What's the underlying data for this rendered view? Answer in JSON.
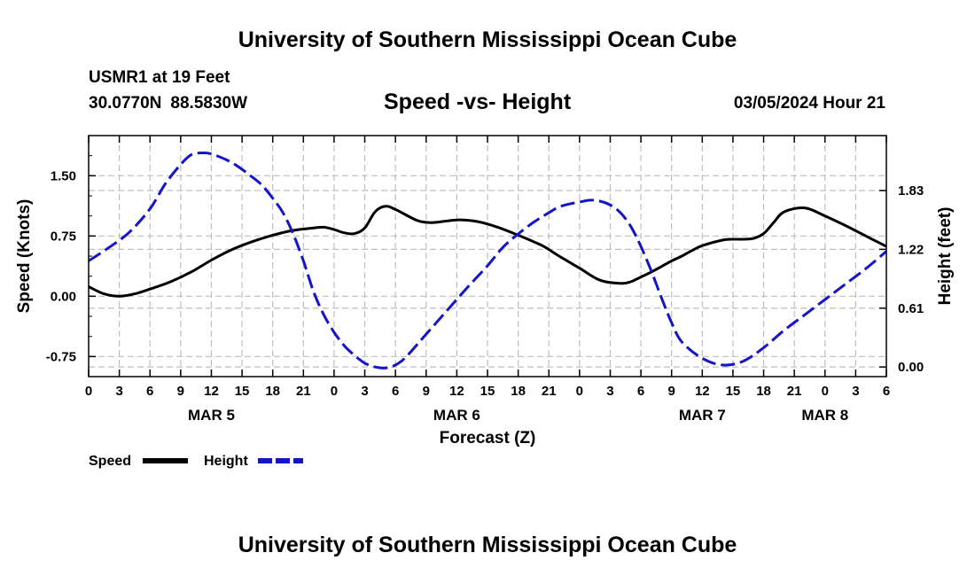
{
  "header": {
    "title_top": "University of Southern Mississippi Ocean Cube",
    "title_bottom": "University of Southern Mississippi Ocean Cube",
    "station": "USMR1 at 19 Feet",
    "latitude": "30.0770N",
    "longitude": "88.5830W",
    "subtitle": "Speed -vs- Height",
    "datetime": "03/05/2024 Hour 21"
  },
  "colors": {
    "speed": "#000000",
    "height": "#1414c8",
    "grid": "#bfbfbf"
  },
  "chart_data": {
    "type": "line",
    "xlabel": "Forecast (Z)",
    "ylabel": "Speed (Knots)",
    "ylabel_right": "Height (feet)",
    "x_unit": "hours from 00Z MAR 4",
    "xlim": [
      24,
      102
    ],
    "ylim": [
      -1.0,
      2.0
    ],
    "ylim_right": [
      -0.1,
      2.4
    ],
    "x_ticks": [
      24,
      27,
      30,
      33,
      36,
      39,
      42,
      45,
      48,
      51,
      54,
      57,
      60,
      63,
      66,
      69,
      72,
      75,
      78,
      81,
      84,
      87,
      90,
      93,
      96,
      99,
      102
    ],
    "x_tick_labels": [
      "0",
      "3",
      "6",
      "9",
      "12",
      "15",
      "18",
      "21",
      "0",
      "3",
      "6",
      "9",
      "12",
      "15",
      "18",
      "21",
      "0",
      "3",
      "6",
      "9",
      "12",
      "15",
      "18",
      "21",
      "0",
      "3",
      "6"
    ],
    "day_labels": [
      {
        "x": 36,
        "label": "MAR 5"
      },
      {
        "x": 60,
        "label": "MAR 6"
      },
      {
        "x": 84,
        "label": "MAR 7"
      },
      {
        "x": 96,
        "label": "MAR 8"
      }
    ],
    "y_ticks": [
      -0.75,
      0.0,
      0.75,
      1.5
    ],
    "y_tick_labels": [
      "-0.75",
      "0.00",
      "0.75",
      "1.50"
    ],
    "y_ticks_right": [
      0.0,
      0.61,
      1.22,
      1.83
    ],
    "y_tick_labels_right": [
      "0.00",
      "0.61",
      "1.22",
      "1.83"
    ],
    "series": [
      {
        "name": "Speed",
        "axis": "left",
        "style": "solid",
        "x": [
          24,
          25.5,
          27,
          28.5,
          30,
          32,
          34,
          36,
          38,
          40,
          42,
          44,
          46,
          47,
          48,
          49,
          50,
          51,
          52,
          53,
          54,
          56,
          57,
          58,
          60,
          62,
          64,
          66,
          67.5,
          68.5,
          70,
          72,
          74,
          76,
          77,
          78,
          79,
          80,
          81,
          82,
          83,
          84,
          86,
          87,
          88,
          89,
          90,
          91,
          92,
          94,
          96,
          98,
          100,
          102
        ],
        "y": [
          0.12,
          0.03,
          0.0,
          0.03,
          0.09,
          0.18,
          0.3,
          0.45,
          0.58,
          0.68,
          0.76,
          0.82,
          0.85,
          0.86,
          0.83,
          0.79,
          0.78,
          0.85,
          1.05,
          1.12,
          1.08,
          0.95,
          0.92,
          0.92,
          0.95,
          0.93,
          0.86,
          0.76,
          0.68,
          0.62,
          0.5,
          0.35,
          0.2,
          0.16,
          0.18,
          0.24,
          0.3,
          0.37,
          0.44,
          0.5,
          0.57,
          0.63,
          0.7,
          0.71,
          0.71,
          0.72,
          0.78,
          0.92,
          1.05,
          1.1,
          1.0,
          0.88,
          0.75,
          0.62
        ]
      },
      {
        "name": "Height",
        "axis": "right",
        "style": "dashed",
        "x": [
          24,
          26,
          28,
          30,
          31.5,
          33,
          34,
          35,
          36,
          38,
          40,
          41,
          42,
          43,
          44,
          45,
          46,
          47,
          48,
          49,
          50,
          51,
          52,
          53,
          54,
          55,
          57,
          59,
          61,
          63,
          64.5,
          66,
          67.5,
          69,
          70,
          71,
          72,
          73,
          74,
          75,
          76,
          77,
          78,
          79,
          80,
          81,
          82,
          84,
          86,
          88,
          90,
          92,
          94,
          96,
          98,
          100,
          102
        ],
        "y": [
          1.1,
          1.24,
          1.4,
          1.64,
          1.9,
          2.1,
          2.2,
          2.22,
          2.21,
          2.12,
          1.97,
          1.88,
          1.75,
          1.6,
          1.38,
          1.1,
          0.78,
          0.54,
          0.36,
          0.22,
          0.12,
          0.04,
          0.0,
          -0.01,
          0.02,
          0.1,
          0.34,
          0.58,
          0.82,
          1.05,
          1.24,
          1.38,
          1.5,
          1.6,
          1.66,
          1.69,
          1.71,
          1.73,
          1.72,
          1.68,
          1.6,
          1.46,
          1.25,
          1.0,
          0.72,
          0.46,
          0.26,
          0.09,
          0.02,
          0.06,
          0.2,
          0.38,
          0.54,
          0.7,
          0.86,
          1.02,
          1.2
        ]
      }
    ],
    "legend": [
      {
        "label": "Speed",
        "style": "solid"
      },
      {
        "label": "Height",
        "style": "dashed"
      }
    ],
    "legend_position": "bottom-left",
    "grid": true
  }
}
